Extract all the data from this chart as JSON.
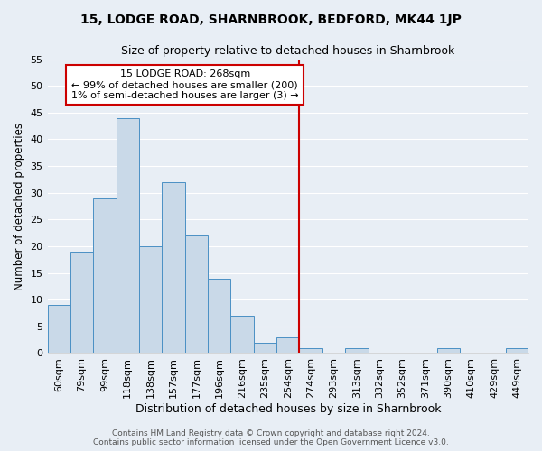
{
  "title": "15, LODGE ROAD, SHARNBROOK, BEDFORD, MK44 1JP",
  "subtitle": "Size of property relative to detached houses in Sharnbrook",
  "xlabel": "Distribution of detached houses by size in Sharnbrook",
  "ylabel": "Number of detached properties",
  "categories": [
    "60sqm",
    "79sqm",
    "99sqm",
    "118sqm",
    "138sqm",
    "157sqm",
    "177sqm",
    "196sqm",
    "216sqm",
    "235sqm",
    "254sqm",
    "274sqm",
    "293sqm",
    "313sqm",
    "332sqm",
    "352sqm",
    "371sqm",
    "390sqm",
    "410sqm",
    "429sqm",
    "449sqm"
  ],
  "values": [
    9,
    19,
    29,
    44,
    20,
    32,
    22,
    14,
    7,
    2,
    3,
    1,
    0,
    1,
    0,
    0,
    0,
    1,
    0,
    0,
    1
  ],
  "bar_color": "#c9d9e8",
  "bar_edge_color": "#4a90c4",
  "background_color": "#e8eef5",
  "grid_color": "#ffffff",
  "red_line_index": 11,
  "annotation_text": "15 LODGE ROAD: 268sqm\n← 99% of detached houses are smaller (200)\n1% of semi-detached houses are larger (3) →",
  "annotation_box_color": "#ffffff",
  "annotation_box_edge_color": "#cc0000",
  "footer_text": "Contains HM Land Registry data © Crown copyright and database right 2024.\nContains public sector information licensed under the Open Government Licence v3.0.",
  "ylim": [
    0,
    55
  ],
  "yticks": [
    0,
    5,
    10,
    15,
    20,
    25,
    30,
    35,
    40,
    45,
    50,
    55
  ],
  "title_fontsize": 10,
  "subtitle_fontsize": 9,
  "xlabel_fontsize": 9,
  "ylabel_fontsize": 8.5,
  "tick_fontsize": 8,
  "annotation_fontsize": 8,
  "footer_fontsize": 6.5
}
